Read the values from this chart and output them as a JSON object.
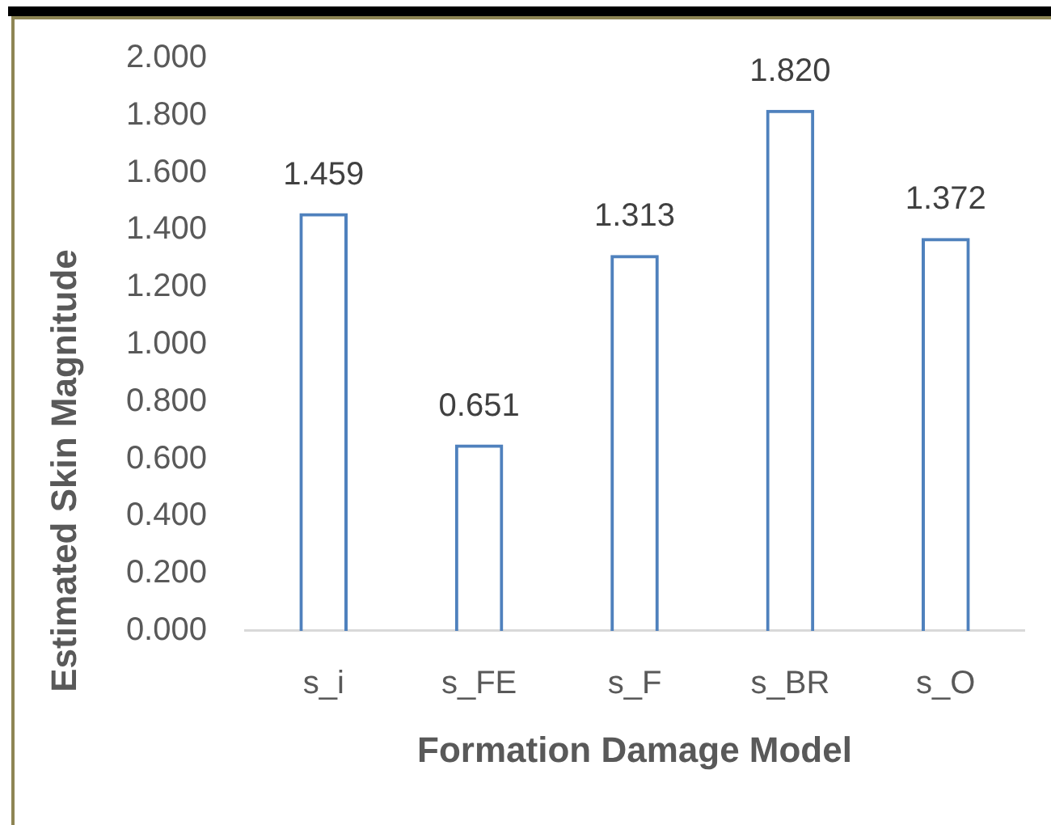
{
  "chart_data": {
    "type": "bar",
    "xlabel": "Formation Damage Model",
    "ylabel": "Estimated Skin Magnitude",
    "categories": [
      "s_i",
      "s_FE",
      "s_F",
      "s_BR",
      "s_O"
    ],
    "values": [
      1.459,
      0.651,
      1.313,
      1.82,
      1.372
    ],
    "color": "#4f81bd",
    "value_labels": [
      "1.459",
      "0.651",
      "1.313",
      "1.820",
      "1.372"
    ],
    "ylim": [
      0,
      2
    ],
    "yticks": [
      {
        "value": 0,
        "label": "0.000"
      },
      {
        "value": 0.2,
        "label": "0.200"
      },
      {
        "value": 0.4,
        "label": "0.400"
      },
      {
        "value": 0.6,
        "label": "0.600"
      },
      {
        "value": 0.8,
        "label": "0.800"
      },
      {
        "value": 1,
        "label": "1.000"
      },
      {
        "value": 1.2,
        "label": "1.200"
      },
      {
        "value": 1.4,
        "label": "1.400"
      },
      {
        "value": 1.6,
        "label": "1.600"
      },
      {
        "value": 1.8,
        "label": "1.800"
      },
      {
        "value": 2,
        "label": "2.000"
      }
    ],
    "grid": false,
    "legend": false
  }
}
